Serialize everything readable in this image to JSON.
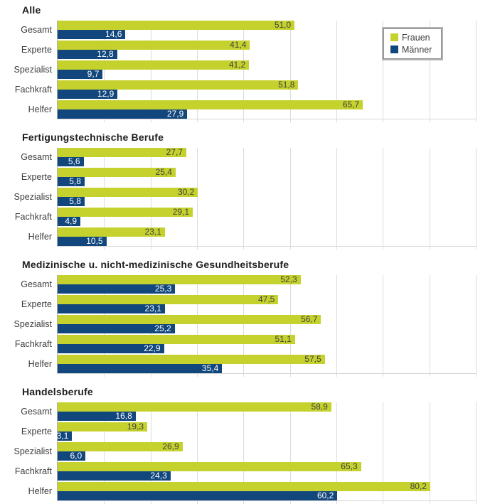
{
  "legend": {
    "position": "top-right-of-first-chart",
    "items": [
      {
        "label": "Frauen",
        "swatch_color": "#c5d22e"
      },
      {
        "label": "Männer",
        "swatch_color": "#12477d"
      }
    ]
  },
  "colors": {
    "frauen_bar": "#c5d22e",
    "maenner_bar": "#12477d",
    "frauen_value_text": "#3f3f3f",
    "maenner_value_text": "#ffffff",
    "gridline": "#dcdcdc",
    "title_text": "#1f1f1f",
    "category_text": "#3d3d3d"
  },
  "axis": {
    "xmin": 0,
    "xmax": 90,
    "grid_step": 10,
    "grid_visible": true,
    "tick_labels_visible": false
  },
  "value_format": "decimal-comma-1",
  "chart_data": [
    {
      "type": "bar",
      "orientation": "horizontal",
      "title": "Alle",
      "categories": [
        "Gesamt",
        "Experte",
        "Spezialist",
        "Fachkraft",
        "Helfer"
      ],
      "series": [
        {
          "name": "Frauen",
          "values": [
            51.0,
            41.4,
            41.2,
            51.8,
            65.7
          ]
        },
        {
          "name": "Männer",
          "values": [
            14.6,
            12.8,
            9.7,
            12.9,
            27.9
          ]
        }
      ],
      "xlim": [
        0,
        90
      ],
      "legend_visible": true
    },
    {
      "type": "bar",
      "orientation": "horizontal",
      "title": "Fertigungstechnische Berufe",
      "categories": [
        "Gesamt",
        "Experte",
        "Spezialist",
        "Fachkraft",
        "Helfer"
      ],
      "series": [
        {
          "name": "Frauen",
          "values": [
            27.7,
            25.4,
            30.2,
            29.1,
            23.1
          ]
        },
        {
          "name": "Männer",
          "values": [
            5.6,
            5.8,
            5.8,
            4.9,
            10.5
          ]
        }
      ],
      "xlim": [
        0,
        90
      ],
      "legend_visible": false
    },
    {
      "type": "bar",
      "orientation": "horizontal",
      "title": "Medizinische u. nicht-medizinische Gesundheitsberufe",
      "categories": [
        "Gesamt",
        "Experte",
        "Spezialist",
        "Fachkraft",
        "Helfer"
      ],
      "series": [
        {
          "name": "Frauen",
          "values": [
            52.3,
            47.5,
            56.7,
            51.1,
            57.5
          ]
        },
        {
          "name": "Männer",
          "values": [
            25.3,
            23.1,
            25.2,
            22.9,
            35.4
          ]
        }
      ],
      "xlim": [
        0,
        90
      ],
      "legend_visible": false
    },
    {
      "type": "bar",
      "orientation": "horizontal",
      "title": "Handelsberufe",
      "categories": [
        "Gesamt",
        "Experte",
        "Spezialist",
        "Fachkraft",
        "Helfer"
      ],
      "series": [
        {
          "name": "Frauen",
          "values": [
            58.9,
            19.3,
            26.9,
            65.3,
            80.2
          ]
        },
        {
          "name": "Männer",
          "values": [
            16.8,
            3.1,
            6.0,
            24.3,
            60.2
          ]
        }
      ],
      "xlim": [
        0,
        90
      ],
      "legend_visible": false
    }
  ]
}
